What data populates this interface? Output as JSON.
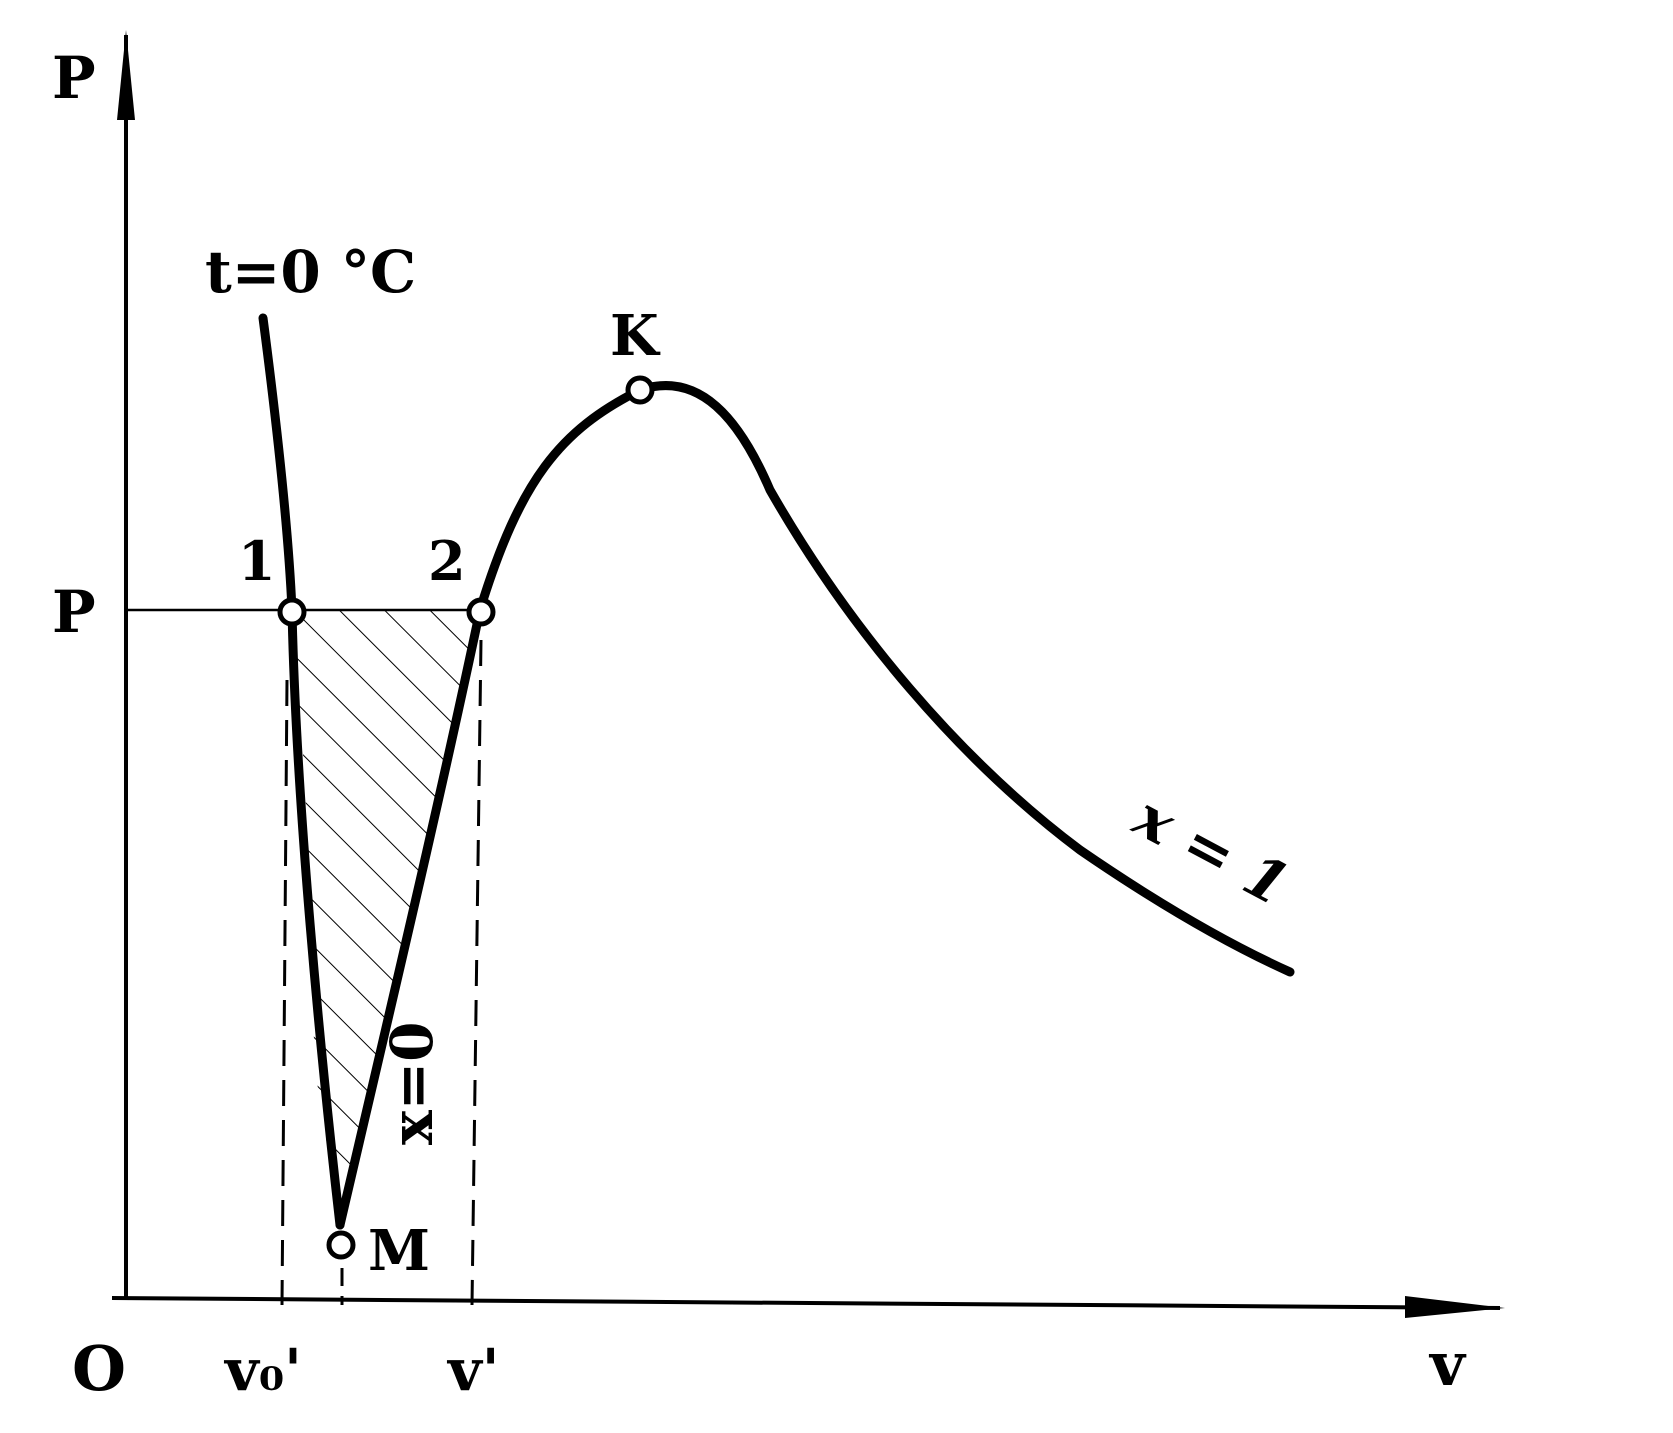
{
  "labels": {
    "p_axis": "P",
    "v_axis": "v",
    "origin": "O",
    "p_level": "P",
    "isotherm": "t=0 °C",
    "point_1": "1",
    "point_2": "2",
    "point_k": "K",
    "point_m": "M",
    "v0_prime": "v₀'",
    "v_prime": "v'",
    "x0_curve": "x=0",
    "x1_curve": "x = 1"
  }
}
